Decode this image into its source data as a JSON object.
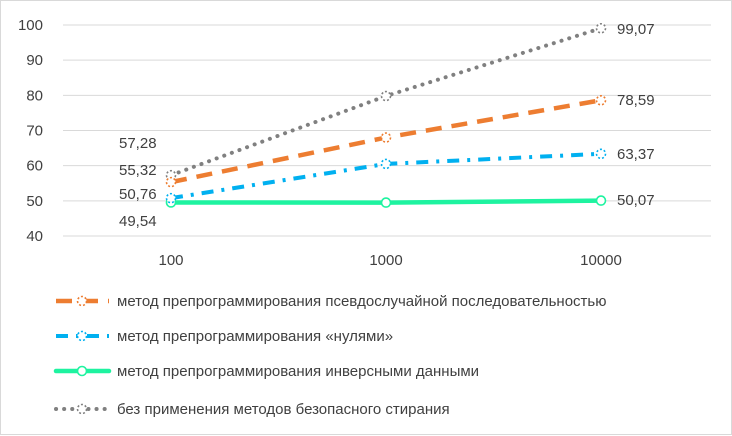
{
  "chart_data": {
    "type": "line",
    "x_scale": "log",
    "categories": [
      "100",
      "1000",
      "10000"
    ],
    "x": [
      100,
      1000,
      10000
    ],
    "ylim": [
      40,
      100
    ],
    "yticks": [
      "40",
      "50",
      "60",
      "70",
      "80",
      "90",
      "100"
    ],
    "ytick_values": [
      40,
      50,
      60,
      70,
      80,
      90,
      100
    ],
    "grid": true,
    "legend_position": "bottom",
    "series": [
      {
        "name": "метод препрограммирования псевдослучайной последовательностью",
        "values": [
          55.32,
          68,
          78.59
        ],
        "labels": [
          "55,32",
          "",
          "78,59"
        ],
        "color": "#ed7d31",
        "line_style": "long-dash"
      },
      {
        "name": "метод препрограммирования «нулями»",
        "values": [
          50.76,
          60.5,
          63.37
        ],
        "labels": [
          "50,76",
          "",
          "63,37"
        ],
        "color": "#00b0f0",
        "line_style": "dash-dot"
      },
      {
        "name": "метод препрограммирования инверсными данными",
        "values": [
          49.54,
          49.5,
          50.07
        ],
        "labels": [
          "49,54",
          "",
          "50,07"
        ],
        "color": "#1ef3a0",
        "line_style": "solid"
      },
      {
        "name": "без применения методов безопасного стирания",
        "values": [
          57.28,
          79.8,
          99.07
        ],
        "labels": [
          "57,28",
          "",
          "99,07"
        ],
        "color": "#808080",
        "line_style": "dotted"
      }
    ]
  }
}
